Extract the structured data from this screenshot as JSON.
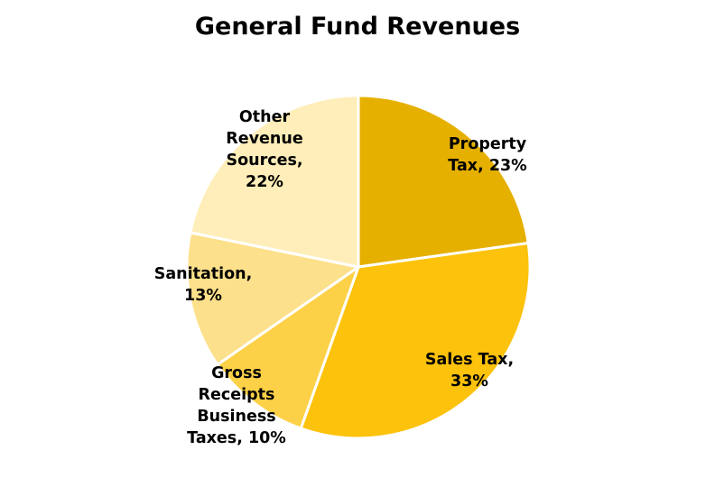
{
  "chart_data": {
    "type": "pie",
    "title": "General Fund Revenues",
    "slices": [
      {
        "label_lines": [
          "Property",
          "Tax, 23%"
        ],
        "category": "Property Tax",
        "value": 23,
        "color": "#E6B000"
      },
      {
        "label_lines": [
          "Sales Tax,",
          "33%"
        ],
        "category": "Sales Tax",
        "value": 33,
        "color": "#FCC20C"
      },
      {
        "label_lines": [
          "Gross",
          "Receipts",
          "Business",
          "Taxes, 10%"
        ],
        "category": "Gross Receipts Business Taxes",
        "value": 10,
        "color": "#FDD147"
      },
      {
        "label_lines": [
          "Sanitation,",
          "13%"
        ],
        "category": "Sanitation",
        "value": 13,
        "color": "#FDE08B"
      },
      {
        "label_lines": [
          "Other",
          "Revenue",
          "Sources,",
          "22%"
        ],
        "category": "Other Revenue Sources",
        "value": 22,
        "color": "#FFEEB9"
      }
    ]
  }
}
